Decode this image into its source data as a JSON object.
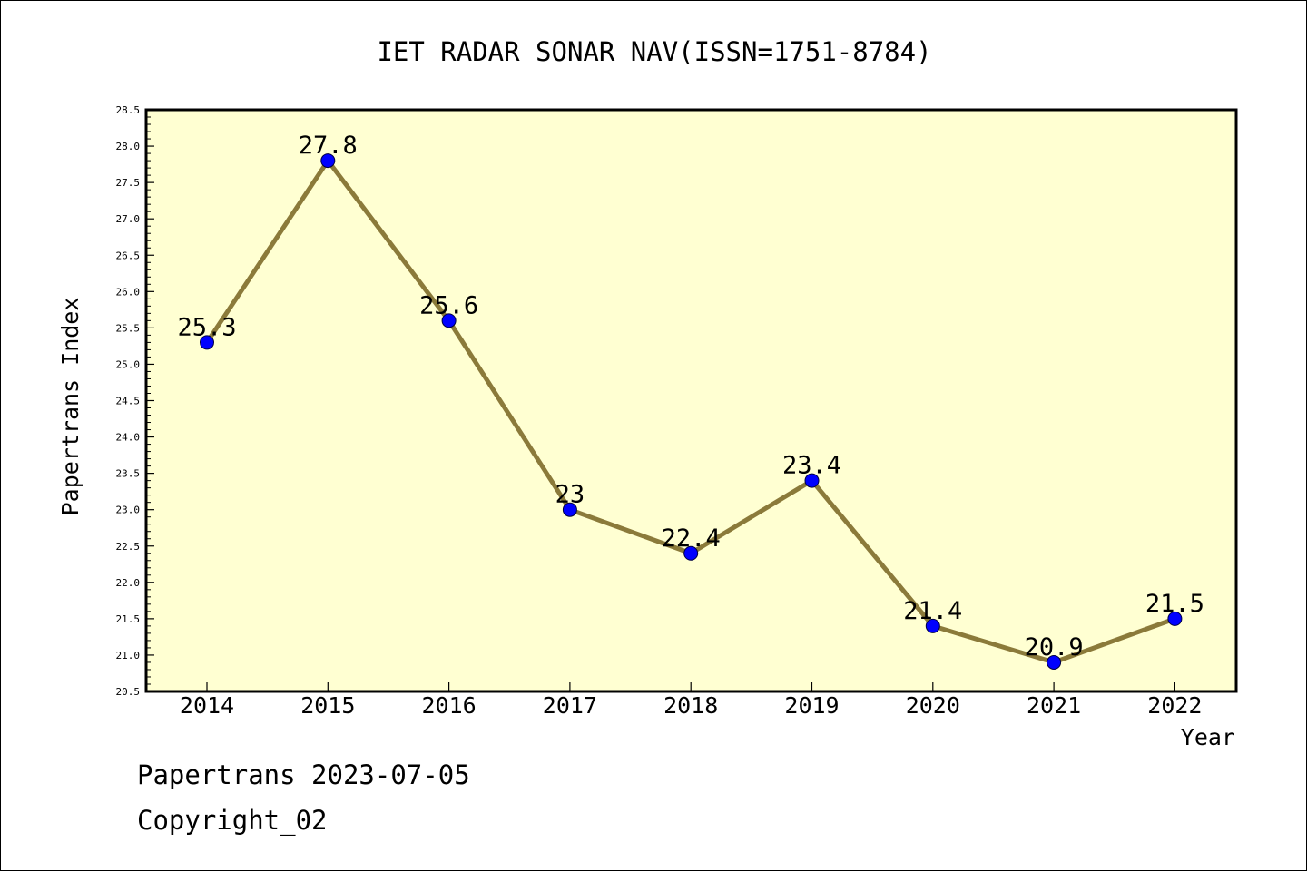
{
  "chart_data": {
    "type": "line",
    "title": "IET RADAR SONAR NAV(ISSN=1751-8784)",
    "xlabel": "Year",
    "ylabel": "Papertrans Index",
    "categories": [
      "2014",
      "2015",
      "2016",
      "2017",
      "2018",
      "2019",
      "2020",
      "2021",
      "2022"
    ],
    "series": [
      {
        "values": [
          25.3,
          27.8,
          25.6,
          23,
          22.4,
          23.4,
          21.4,
          20.9,
          21.5
        ],
        "labels": [
          "25.3",
          "27.8",
          "25.6",
          "23",
          "22.4",
          "23.4",
          "21.4",
          "20.9",
          "21.5"
        ]
      }
    ],
    "ylim": [
      20.5,
      28.5
    ],
    "yticks": [
      "20.5",
      "21.0",
      "21.5",
      "22.0",
      "22.5",
      "23.0",
      "23.5",
      "24.0",
      "24.5",
      "25.0",
      "25.5",
      "26.0",
      "26.5",
      "27.0",
      "27.5",
      "28.0",
      "28.5"
    ],
    "grid": false,
    "colors": {
      "plot_background": "#ffffd2",
      "line": "#8b7a3a",
      "marker": "#0000ff"
    }
  },
  "footer": {
    "date_line": "Papertrans 2023-07-05",
    "copyright": "Copyright_02"
  }
}
